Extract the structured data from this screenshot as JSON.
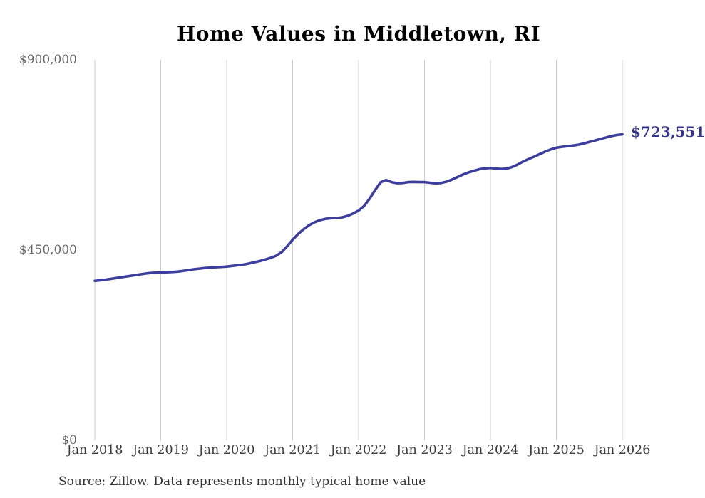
{
  "title": "Home Values in Middletown, RI",
  "source_note": "Source: Zillow. Data represents monthly typical home value",
  "annotation": {
    "last_value_label": "$723,551"
  },
  "colors": {
    "line": "#3d3d9e",
    "annotation_text": "#333388",
    "grid": "#cccccc",
    "title_text": "#000000",
    "x_tick_text": "#3d3d3d",
    "y_tick_text": "#666666",
    "source_text": "#333333",
    "background": "#ffffff"
  },
  "chart_data": {
    "type": "line",
    "title": "Home Values in Middletown, RI",
    "xlabel": "",
    "ylabel": "",
    "ylim": [
      0,
      900000
    ],
    "grid": "vertical-only",
    "legend": "none",
    "x_start_month": "2018-01",
    "x_end_month": "2026-01",
    "x_tick_labels": [
      "Jan 2018",
      "Jan 2019",
      "Jan 2020",
      "Jan 2021",
      "Jan 2022",
      "Jan 2023",
      "Jan 2024",
      "Jan 2025",
      "Jan 2026"
    ],
    "y_ticks": [
      {
        "value": 0,
        "label": "$0"
      },
      {
        "value": 450000,
        "label": "$450,000"
      },
      {
        "value": 900000,
        "label": "$900,000"
      }
    ],
    "series": [
      {
        "name": "Monthly typical home value",
        "color": "#3d3d9e",
        "last_point_label": "$723,551",
        "values": [
          376500,
          378000,
          379500,
          381500,
          383500,
          385500,
          387500,
          389500,
          391500,
          393500,
          395000,
          396000,
          396500,
          397000,
          397500,
          398500,
          400000,
          402000,
          404000,
          405500,
          407000,
          408000,
          409000,
          409500,
          410500,
          412000,
          413500,
          415000,
          417500,
          420500,
          423500,
          427000,
          431000,
          436000,
          444500,
          458500,
          474000,
          487500,
          499000,
          508500,
          515500,
          520500,
          523500,
          525000,
          525500,
          527000,
          530500,
          536000,
          543000,
          554000,
          571000,
          591500,
          610000,
          615500,
          610500,
          608000,
          608500,
          610500,
          611000,
          610500,
          610500,
          609000,
          607500,
          608500,
          611500,
          616500,
          622500,
          628500,
          633500,
          637500,
          641000,
          643000,
          644000,
          642500,
          641500,
          642500,
          646500,
          652500,
          659500,
          665500,
          671000,
          677000,
          683000,
          688000,
          692000,
          694000,
          695500,
          697000,
          699000,
          702000,
          705500,
          709000,
          712500,
          716000,
          719500,
          722000,
          723551
        ]
      }
    ]
  }
}
